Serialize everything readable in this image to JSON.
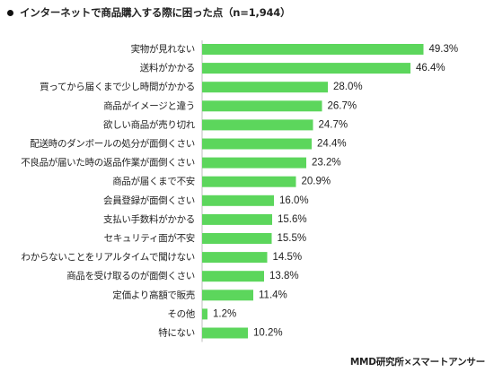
{
  "title": "インターネットで商品購入する際に困った点（n=1,944）",
  "source": "MMD研究所×スマートアンサー",
  "colors": {
    "bar": "#5cd65c",
    "axis": "#bfbfbf",
    "text": "#222222"
  },
  "chart_data": {
    "type": "bar",
    "orientation": "horizontal",
    "title": "インターネットで商品購入する際に困った点（n=1,944）",
    "categories": [
      "実物が見れない",
      "送料がかかる",
      "買ってから届くまで少し時間がかかる",
      "商品がイメージと違う",
      "欲しい商品が売り切れ",
      "配送時のダンボールの処分が面倒くさい",
      "不良品が届いた時の返品作業が面倒くさい",
      "商品が届くまで不安",
      "会員登録が面倒くさい",
      "支払い手数料がかかる",
      "セキュリティ面が不安",
      "わからないことをリアルタイムで聞けない",
      "商品を受け取るのが面倒くさい",
      "定価より高額で販売",
      "その他",
      "特にない"
    ],
    "values": [
      49.3,
      46.4,
      28.0,
      26.7,
      24.7,
      24.4,
      23.2,
      20.9,
      16.0,
      15.6,
      15.5,
      14.5,
      13.8,
      11.4,
      1.2,
      10.2
    ],
    "value_labels": [
      "49.3%",
      "46.4%",
      "28.0%",
      "26.7%",
      "24.7%",
      "24.4%",
      "23.2%",
      "20.9%",
      "16.0%",
      "15.6%",
      "15.5%",
      "14.5%",
      "13.8%",
      "11.4%",
      "1.2%",
      "10.2%"
    ],
    "xlim": [
      0,
      50
    ],
    "grid": false,
    "legend": "none"
  }
}
